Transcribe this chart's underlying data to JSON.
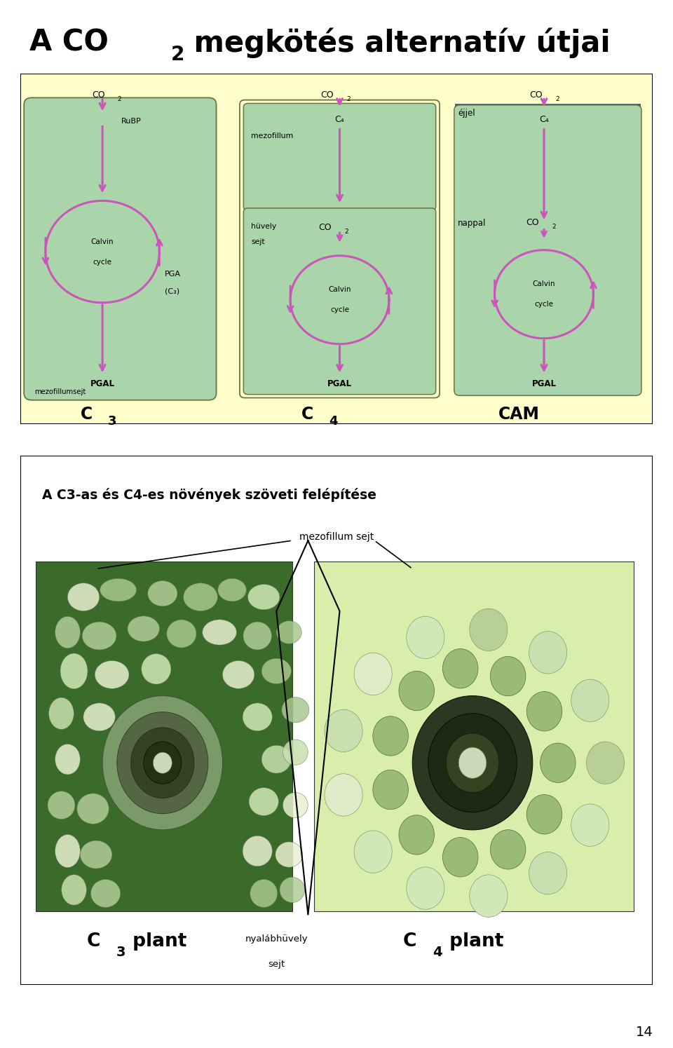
{
  "bg_color": "#ffffff",
  "yellow_bg": "#ffffcc",
  "green_bg": "#aad4aa",
  "cam_blue_top": "#4a6e8a",
  "cam_yellow_bot": "#ffffcc",
  "purple": "#cc55bb",
  "title": "A CO",
  "title_sub": "2",
  "title_rest": " megkötés alternatív útjai",
  "section2_title": "A C3-as és C4-es növények szöveti felépítése",
  "page_num": "14"
}
